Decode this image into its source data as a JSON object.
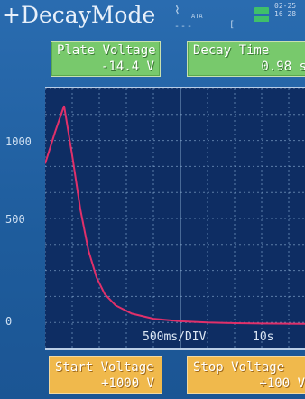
{
  "header": {
    "title": "+DecayMode",
    "status": {
      "ata": "ATA",
      "dashes": "---",
      "bracket": "[",
      "clock_line1": "02-25",
      "clock_line2": "16 28"
    }
  },
  "readouts": {
    "plate_voltage": {
      "label": "Plate Voltage",
      "value": "-14.4 V"
    },
    "decay_time": {
      "label": "Decay Time",
      "value": "0.98 s"
    }
  },
  "plot": {
    "timebase": "500ms/DIV",
    "span": "10s"
  },
  "controls": {
    "start_voltage": {
      "label": "Start Voltage",
      "value": "+1000 V"
    },
    "stop_voltage": {
      "label": "Stop Voltage",
      "value": "+100 V"
    }
  },
  "chart_data": {
    "type": "line",
    "title": "",
    "xlabel": "",
    "ylabel": "",
    "y_ticks": [
      "1000",
      "500",
      "0"
    ],
    "ylim": [
      0,
      1100
    ],
    "xlim": [
      0,
      5
    ],
    "grid": true,
    "series": [
      {
        "x": [
          0,
          0.18,
          0.35,
          0.5,
          0.65,
          0.8,
          0.95,
          1.1,
          1.3,
          1.6,
          2.0,
          2.5,
          3.0,
          3.5,
          4.0,
          4.5,
          5.0
        ],
        "values": [
          780,
          930,
          1060,
          820,
          560,
          360,
          230,
          150,
          95,
          55,
          30,
          18,
          12,
          9,
          7,
          6,
          5
        ],
        "color": "#e0306a"
      }
    ]
  },
  "colors": {
    "background": "#2266a8",
    "readout_panel": "#78c96c",
    "control_panel": "#f0b94c",
    "plot_bg": "#0e2d63",
    "trace": "#e0306a"
  }
}
